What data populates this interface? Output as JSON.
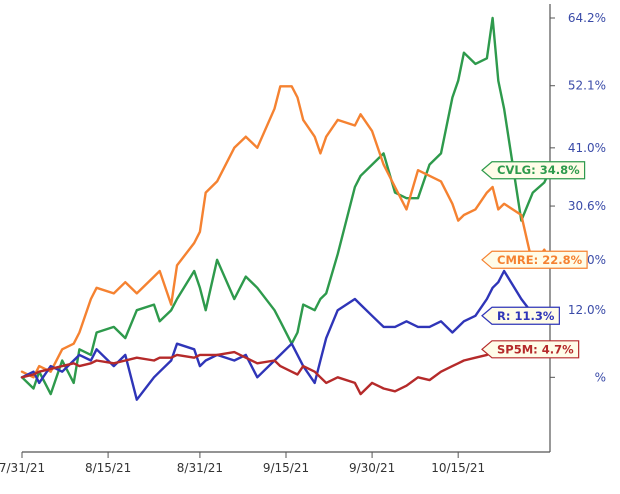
{
  "chart_data": {
    "type": "line",
    "y_unit": "%",
    "ylim": [
      -11.2,
      64.2
    ],
    "xlim": [
      "2021-07-31",
      "2021-10-31"
    ],
    "x_ticks": [
      "7/31/21",
      "8/15/21",
      "8/31/21",
      "9/15/21",
      "9/30/21",
      "10/15/21"
    ],
    "y_ticks": [
      {
        "value": 64.2,
        "label": "64.2%"
      },
      {
        "value": 52.1,
        "label": "52.1%"
      },
      {
        "value": 41.0,
        "label": "41.0%"
      },
      {
        "value": 30.6,
        "label": "30.6%"
      },
      {
        "value": 21.0,
        "label": "21.0%"
      },
      {
        "value": 12.0,
        "label": "12.0%"
      },
      {
        "value": 0,
        "label": "%"
      }
    ],
    "grid": false,
    "series": [
      {
        "name": "CVLG",
        "label": "CVLG: 34.8%",
        "color": "#2e9a4c",
        "x": [
          "2021-07-31",
          "2021-08-02",
          "2021-08-03",
          "2021-08-05",
          "2021-08-07",
          "2021-08-09",
          "2021-08-10",
          "2021-08-12",
          "2021-08-13",
          "2021-08-16",
          "2021-08-18",
          "2021-08-20",
          "2021-08-23",
          "2021-08-24",
          "2021-08-26",
          "2021-08-27",
          "2021-08-30",
          "2021-08-31",
          "2021-09-01",
          "2021-09-03",
          "2021-09-06",
          "2021-09-08",
          "2021-09-10",
          "2021-09-13",
          "2021-09-14",
          "2021-09-16",
          "2021-09-17",
          "2021-09-18",
          "2021-09-20",
          "2021-09-21",
          "2021-09-22",
          "2021-09-24",
          "2021-09-27",
          "2021-09-28",
          "2021-09-30",
          "2021-10-02",
          "2021-10-04",
          "2021-10-06",
          "2021-10-08",
          "2021-10-10",
          "2021-10-12",
          "2021-10-14",
          "2021-10-15",
          "2021-10-16",
          "2021-10-18",
          "2021-10-20",
          "2021-10-21",
          "2021-10-22",
          "2021-10-23",
          "2021-10-26",
          "2021-10-28",
          "2021-10-30",
          "2021-10-31"
        ],
        "y": [
          0,
          -2,
          1,
          -3,
          3,
          -1,
          5,
          4,
          8,
          9,
          7,
          12,
          13,
          10,
          12,
          14,
          19,
          16,
          12,
          21,
          14,
          18,
          16,
          12,
          10,
          6,
          8,
          13,
          12,
          14,
          15,
          22,
          34,
          36,
          38,
          40,
          33,
          32,
          32,
          38,
          40,
          50,
          53,
          58,
          56,
          57,
          64.2,
          53,
          48,
          28,
          33,
          34.8,
          37
        ]
      },
      {
        "name": "CMRE",
        "label": "CMRE: 22.8%",
        "color": "#f58231",
        "x": [
          "2021-07-31",
          "2021-08-02",
          "2021-08-03",
          "2021-08-05",
          "2021-08-07",
          "2021-08-09",
          "2021-08-10",
          "2021-08-12",
          "2021-08-13",
          "2021-08-16",
          "2021-08-18",
          "2021-08-20",
          "2021-08-23",
          "2021-08-24",
          "2021-08-26",
          "2021-08-27",
          "2021-08-30",
          "2021-08-31",
          "2021-09-01",
          "2021-09-03",
          "2021-09-06",
          "2021-09-08",
          "2021-09-10",
          "2021-09-13",
          "2021-09-14",
          "2021-09-16",
          "2021-09-17",
          "2021-09-18",
          "2021-09-20",
          "2021-09-21",
          "2021-09-22",
          "2021-09-24",
          "2021-09-27",
          "2021-09-28",
          "2021-09-30",
          "2021-10-02",
          "2021-10-04",
          "2021-10-06",
          "2021-10-08",
          "2021-10-10",
          "2021-10-12",
          "2021-10-14",
          "2021-10-15",
          "2021-10-16",
          "2021-10-18",
          "2021-10-20",
          "2021-10-21",
          "2021-10-22",
          "2021-10-23",
          "2021-10-26",
          "2021-10-28",
          "2021-10-30",
          "2021-10-31"
        ],
        "y": [
          1,
          0,
          2,
          1,
          5,
          6,
          8,
          14,
          16,
          15,
          17,
          15,
          18,
          19,
          13,
          20,
          24,
          26,
          33,
          35,
          41,
          43,
          41,
          48,
          52,
          52,
          50,
          46,
          43,
          40,
          43,
          46,
          45,
          47,
          44,
          38,
          34,
          30,
          37,
          36,
          35,
          31,
          28,
          29,
          30,
          33,
          34,
          30,
          31,
          29,
          20,
          22.8,
          21
        ]
      },
      {
        "name": "R",
        "label": "R: 11.3%",
        "color": "#2f35b8",
        "x": [
          "2021-07-31",
          "2021-08-02",
          "2021-08-03",
          "2021-08-05",
          "2021-08-07",
          "2021-08-09",
          "2021-08-10",
          "2021-08-12",
          "2021-08-13",
          "2021-08-16",
          "2021-08-18",
          "2021-08-20",
          "2021-08-23",
          "2021-08-24",
          "2021-08-26",
          "2021-08-27",
          "2021-08-30",
          "2021-08-31",
          "2021-09-01",
          "2021-09-03",
          "2021-09-06",
          "2021-09-08",
          "2021-09-10",
          "2021-09-13",
          "2021-09-14",
          "2021-09-16",
          "2021-09-17",
          "2021-09-18",
          "2021-09-20",
          "2021-09-21",
          "2021-09-22",
          "2021-09-24",
          "2021-09-27",
          "2021-09-28",
          "2021-09-30",
          "2021-10-02",
          "2021-10-04",
          "2021-10-06",
          "2021-10-08",
          "2021-10-10",
          "2021-10-12",
          "2021-10-14",
          "2021-10-15",
          "2021-10-16",
          "2021-10-18",
          "2021-10-20",
          "2021-10-21",
          "2021-10-22",
          "2021-10-23",
          "2021-10-26",
          "2021-10-28",
          "2021-10-30",
          "2021-10-31"
        ],
        "y": [
          0,
          1,
          -1,
          2,
          1,
          3,
          4,
          3,
          5,
          2,
          4,
          -4,
          0,
          1,
          3,
          6,
          5,
          2,
          3,
          4,
          3,
          4,
          0,
          3,
          4,
          6,
          4,
          2,
          -1,
          3,
          7,
          12,
          14,
          13,
          11,
          9,
          9,
          10,
          9,
          9,
          10,
          8,
          9,
          10,
          11,
          14,
          16,
          17,
          19,
          14,
          11.3,
          11,
          11
        ]
      },
      {
        "name": "SP5M",
        "label": "SP5M: 4.7%",
        "color": "#b52a2a",
        "x": [
          "2021-07-31",
          "2021-08-02",
          "2021-08-03",
          "2021-08-05",
          "2021-08-07",
          "2021-08-09",
          "2021-08-10",
          "2021-08-12",
          "2021-08-13",
          "2021-08-16",
          "2021-08-18",
          "2021-08-20",
          "2021-08-23",
          "2021-08-24",
          "2021-08-26",
          "2021-08-27",
          "2021-08-30",
          "2021-08-31",
          "2021-09-01",
          "2021-09-03",
          "2021-09-06",
          "2021-09-08",
          "2021-09-10",
          "2021-09-13",
          "2021-09-14",
          "2021-09-16",
          "2021-09-17",
          "2021-09-18",
          "2021-09-20",
          "2021-09-21",
          "2021-09-22",
          "2021-09-24",
          "2021-09-27",
          "2021-09-28",
          "2021-09-30",
          "2021-10-02",
          "2021-10-04",
          "2021-10-06",
          "2021-10-08",
          "2021-10-10",
          "2021-10-12",
          "2021-10-14",
          "2021-10-15",
          "2021-10-16",
          "2021-10-18",
          "2021-10-20",
          "2021-10-21",
          "2021-10-22",
          "2021-10-23",
          "2021-10-26",
          "2021-10-28",
          "2021-10-30",
          "2021-10-31"
        ],
        "y": [
          0,
          0.5,
          1,
          1.5,
          2,
          2.5,
          2,
          2.5,
          3,
          2.5,
          3,
          3.5,
          3,
          3.5,
          3.5,
          4,
          3.5,
          4,
          4,
          4,
          4.5,
          3.5,
          2.5,
          3,
          2,
          1,
          0.5,
          2,
          1,
          0,
          -1,
          0,
          -1,
          -3,
          -1,
          -2,
          -2.5,
          -1.5,
          0,
          -0.5,
          1,
          2,
          2.5,
          3,
          3.5,
          4,
          4.5,
          4,
          4.5,
          4.7,
          4.7,
          5,
          5
        ]
      }
    ]
  }
}
